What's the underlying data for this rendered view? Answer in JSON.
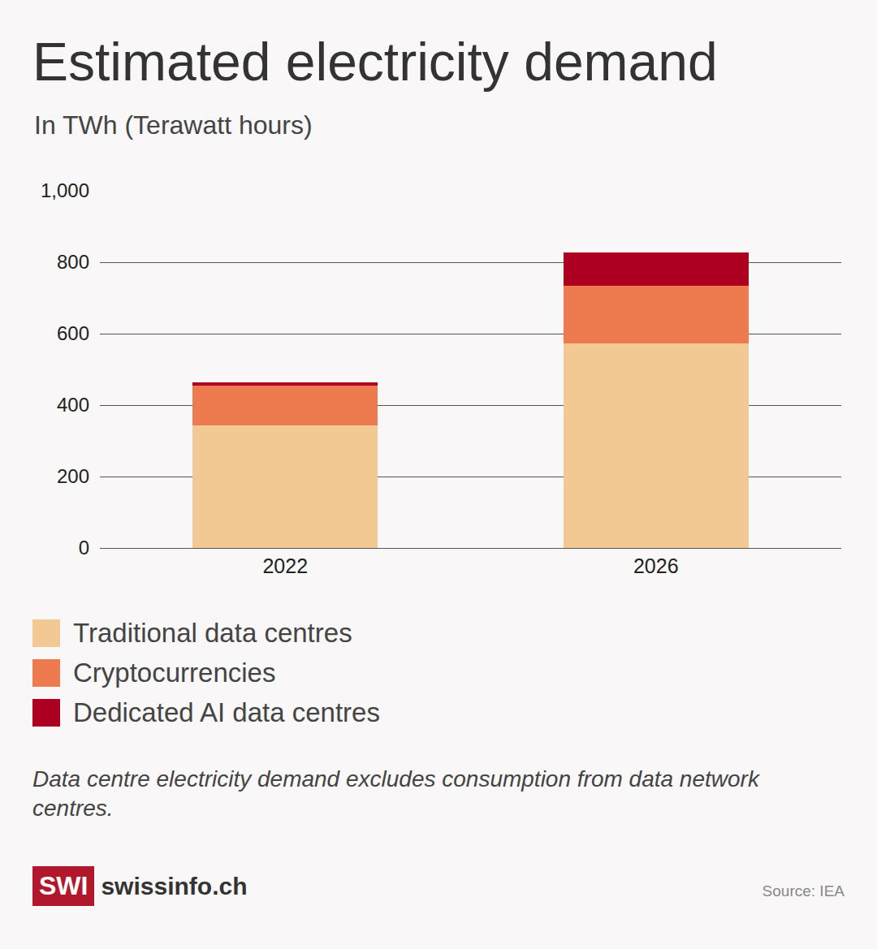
{
  "chart_data": {
    "type": "bar",
    "title": "Estimated electricity demand",
    "subtitle": "In TWh (Terawatt hours)",
    "categories": [
      "2022",
      "2026"
    ],
    "stacked": true,
    "series": [
      {
        "name": "Traditional data centres",
        "color": "#f2c993",
        "values": [
          343,
          573
        ]
      },
      {
        "name": "Cryptocurrencies",
        "color": "#ee7a50",
        "values": [
          112,
          161
        ]
      },
      {
        "name": "Dedicated AI data centres",
        "color": "#ad0020",
        "values": [
          9,
          93
        ]
      }
    ],
    "ylim": [
      0,
      1000
    ],
    "yticks": [
      0,
      200,
      400,
      600,
      800,
      {
        "value": 1000,
        "label": "1,000"
      }
    ],
    "grid": true
  },
  "note": "Data centre electricity demand excludes consumption from data network centres.",
  "logo": {
    "mark": "SWI",
    "name": "swissinfo.ch"
  },
  "source": "Source: IEA"
}
